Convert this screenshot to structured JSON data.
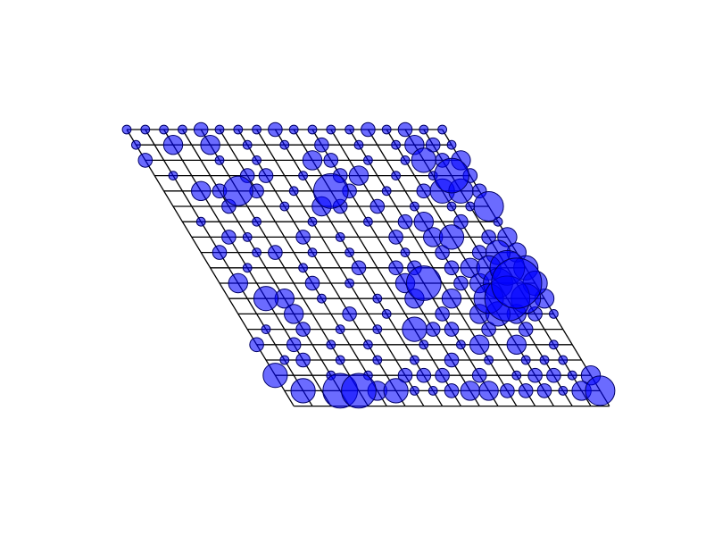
{
  "chart_data": {
    "type": "scatter",
    "grid": true,
    "lattice": {
      "rows": 19,
      "cols": 18
    },
    "colors": {
      "marker_fill": "#0000ff",
      "marker_edge": "#000066",
      "lines": "#000000",
      "background": "#ffffff"
    },
    "size_scale": [
      0,
      10
    ],
    "points": [
      {
        "i": 0,
        "j": 0,
        "s": 1
      },
      {
        "i": 1,
        "j": 0,
        "s": 1
      },
      {
        "i": 2,
        "j": 0,
        "s": 1
      },
      {
        "i": 3,
        "j": 0,
        "s": 1
      },
      {
        "i": 4,
        "j": 0,
        "s": 2
      },
      {
        "i": 5,
        "j": 0,
        "s": 1
      },
      {
        "i": 6,
        "j": 0,
        "s": 1
      },
      {
        "i": 7,
        "j": 0,
        "s": 1
      },
      {
        "i": 8,
        "j": 0,
        "s": 2
      },
      {
        "i": 9,
        "j": 0,
        "s": 1
      },
      {
        "i": 10,
        "j": 0,
        "s": 1
      },
      {
        "i": 11,
        "j": 0,
        "s": 1
      },
      {
        "i": 12,
        "j": 0,
        "s": 1
      },
      {
        "i": 13,
        "j": 0,
        "s": 2
      },
      {
        "i": 14,
        "j": 0,
        "s": 1
      },
      {
        "i": 15,
        "j": 0,
        "s": 2
      },
      {
        "i": 16,
        "j": 0,
        "s": 1
      },
      {
        "i": 17,
        "j": 0,
        "s": 1
      },
      {
        "i": 0,
        "j": 1,
        "s": 1
      },
      {
        "i": 2,
        "j": 1,
        "s": 3
      },
      {
        "i": 4,
        "j": 1,
        "s": 3
      },
      {
        "i": 6,
        "j": 1,
        "s": 1
      },
      {
        "i": 8,
        "j": 1,
        "s": 1
      },
      {
        "i": 10,
        "j": 1,
        "s": 2
      },
      {
        "i": 12,
        "j": 1,
        "s": 1
      },
      {
        "i": 14,
        "j": 1,
        "s": 1
      },
      {
        "i": 15,
        "j": 1,
        "s": 3
      },
      {
        "i": 16,
        "j": 1,
        "s": 2
      },
      {
        "i": 17,
        "j": 1,
        "s": 1
      },
      {
        "i": 0,
        "j": 2,
        "s": 2
      },
      {
        "i": 4,
        "j": 2,
        "s": 1
      },
      {
        "i": 6,
        "j": 2,
        "s": 1
      },
      {
        "i": 9,
        "j": 2,
        "s": 3
      },
      {
        "i": 10,
        "j": 2,
        "s": 2
      },
      {
        "i": 12,
        "j": 2,
        "s": 1
      },
      {
        "i": 14,
        "j": 2,
        "s": 1
      },
      {
        "i": 15,
        "j": 2,
        "s": 4
      },
      {
        "i": 16,
        "j": 2,
        "s": 2
      },
      {
        "i": 17,
        "j": 2,
        "s": 3
      },
      {
        "i": 1,
        "j": 3,
        "s": 1
      },
      {
        "i": 5,
        "j": 3,
        "s": 2
      },
      {
        "i": 6,
        "j": 3,
        "s": 2
      },
      {
        "i": 8,
        "j": 3,
        "s": 1
      },
      {
        "i": 10,
        "j": 3,
        "s": 2
      },
      {
        "i": 11,
        "j": 3,
        "s": 3
      },
      {
        "i": 13,
        "j": 3,
        "s": 1
      },
      {
        "i": 15,
        "j": 3,
        "s": 1
      },
      {
        "i": 16,
        "j": 3,
        "s": 6
      },
      {
        "i": 17,
        "j": 3,
        "s": 2
      },
      {
        "i": 2,
        "j": 4,
        "s": 3
      },
      {
        "i": 3,
        "j": 4,
        "s": 2
      },
      {
        "i": 4,
        "j": 4,
        "s": 5
      },
      {
        "i": 5,
        "j": 4,
        "s": 2
      },
      {
        "i": 7,
        "j": 4,
        "s": 1
      },
      {
        "i": 9,
        "j": 4,
        "s": 6
      },
      {
        "i": 10,
        "j": 4,
        "s": 2
      },
      {
        "i": 12,
        "j": 4,
        "s": 1
      },
      {
        "i": 14,
        "j": 4,
        "s": 2
      },
      {
        "i": 15,
        "j": 4,
        "s": 4
      },
      {
        "i": 16,
        "j": 4,
        "s": 4
      },
      {
        "i": 17,
        "j": 4,
        "s": 2
      },
      {
        "i": 3,
        "j": 5,
        "s": 2
      },
      {
        "i": 6,
        "j": 5,
        "s": 1
      },
      {
        "i": 8,
        "j": 5,
        "s": 3
      },
      {
        "i": 9,
        "j": 5,
        "s": 2
      },
      {
        "i": 11,
        "j": 5,
        "s": 2
      },
      {
        "i": 13,
        "j": 5,
        "s": 1
      },
      {
        "i": 15,
        "j": 5,
        "s": 1
      },
      {
        "i": 16,
        "j": 5,
        "s": 1
      },
      {
        "i": 17,
        "j": 5,
        "s": 5
      },
      {
        "i": 1,
        "j": 6,
        "s": 1
      },
      {
        "i": 4,
        "j": 6,
        "s": 1
      },
      {
        "i": 7,
        "j": 6,
        "s": 1
      },
      {
        "i": 10,
        "j": 6,
        "s": 1
      },
      {
        "i": 12,
        "j": 6,
        "s": 2
      },
      {
        "i": 13,
        "j": 6,
        "s": 3
      },
      {
        "i": 15,
        "j": 6,
        "s": 2
      },
      {
        "i": 17,
        "j": 6,
        "s": 1
      },
      {
        "i": 2,
        "j": 7,
        "s": 2
      },
      {
        "i": 3,
        "j": 7,
        "s": 1
      },
      {
        "i": 6,
        "j": 7,
        "s": 2
      },
      {
        "i": 8,
        "j": 7,
        "s": 1
      },
      {
        "i": 11,
        "j": 7,
        "s": 2
      },
      {
        "i": 13,
        "j": 7,
        "s": 3
      },
      {
        "i": 14,
        "j": 7,
        "s": 4
      },
      {
        "i": 16,
        "j": 7,
        "s": 2
      },
      {
        "i": 17,
        "j": 7,
        "s": 3
      },
      {
        "i": 1,
        "j": 8,
        "s": 2
      },
      {
        "i": 3,
        "j": 8,
        "s": 1
      },
      {
        "i": 4,
        "j": 8,
        "s": 2
      },
      {
        "i": 6,
        "j": 8,
        "s": 1
      },
      {
        "i": 8,
        "j": 8,
        "s": 1
      },
      {
        "i": 11,
        "j": 8,
        "s": 1
      },
      {
        "i": 13,
        "j": 8,
        "s": 2
      },
      {
        "i": 15,
        "j": 8,
        "s": 2
      },
      {
        "i": 16,
        "j": 8,
        "s": 4
      },
      {
        "i": 17,
        "j": 8,
        "s": 3
      },
      {
        "i": 2,
        "j": 9,
        "s": 1
      },
      {
        "i": 5,
        "j": 9,
        "s": 1
      },
      {
        "i": 8,
        "j": 9,
        "s": 2
      },
      {
        "i": 10,
        "j": 9,
        "s": 2
      },
      {
        "i": 11,
        "j": 9,
        "s": 2
      },
      {
        "i": 13,
        "j": 9,
        "s": 2
      },
      {
        "i": 14,
        "j": 9,
        "s": 3
      },
      {
        "i": 15,
        "j": 9,
        "s": 4
      },
      {
        "i": 16,
        "j": 9,
        "s": 6
      },
      {
        "i": 17,
        "j": 9,
        "s": 4
      },
      {
        "i": 1,
        "j": 10,
        "s": 3
      },
      {
        "i": 5,
        "j": 10,
        "s": 2
      },
      {
        "i": 7,
        "j": 10,
        "s": 1
      },
      {
        "i": 10,
        "j": 10,
        "s": 3
      },
      {
        "i": 11,
        "j": 10,
        "s": 6
      },
      {
        "i": 13,
        "j": 10,
        "s": 2
      },
      {
        "i": 14,
        "j": 10,
        "s": 3
      },
      {
        "i": 15,
        "j": 10,
        "s": 5
      },
      {
        "i": 16,
        "j": 10,
        "s": 9
      },
      {
        "i": 17,
        "j": 10,
        "s": 4
      },
      {
        "i": 2,
        "j": 11,
        "s": 4
      },
      {
        "i": 3,
        "j": 11,
        "s": 3
      },
      {
        "i": 5,
        "j": 11,
        "s": 1
      },
      {
        "i": 8,
        "j": 11,
        "s": 1
      },
      {
        "i": 10,
        "j": 11,
        "s": 3
      },
      {
        "i": 12,
        "j": 11,
        "s": 3
      },
      {
        "i": 14,
        "j": 11,
        "s": 5
      },
      {
        "i": 15,
        "j": 11,
        "s": 8
      },
      {
        "i": 16,
        "j": 11,
        "s": 5
      },
      {
        "i": 17,
        "j": 11,
        "s": 3
      },
      {
        "i": 3,
        "j": 12,
        "s": 3
      },
      {
        "i": 6,
        "j": 12,
        "s": 2
      },
      {
        "i": 8,
        "j": 12,
        "s": 1
      },
      {
        "i": 11,
        "j": 12,
        "s": 2
      },
      {
        "i": 13,
        "j": 12,
        "s": 3
      },
      {
        "i": 14,
        "j": 12,
        "s": 4
      },
      {
        "i": 15,
        "j": 12,
        "s": 3
      },
      {
        "i": 16,
        "j": 12,
        "s": 2
      },
      {
        "i": 17,
        "j": 12,
        "s": 1
      },
      {
        "i": 1,
        "j": 13,
        "s": 1
      },
      {
        "i": 3,
        "j": 13,
        "s": 2
      },
      {
        "i": 5,
        "j": 13,
        "s": 1
      },
      {
        "i": 7,
        "j": 13,
        "s": 1
      },
      {
        "i": 9,
        "j": 13,
        "s": 4
      },
      {
        "i": 10,
        "j": 13,
        "s": 2
      },
      {
        "i": 11,
        "j": 13,
        "s": 2
      },
      {
        "i": 13,
        "j": 13,
        "s": 2
      },
      {
        "i": 15,
        "j": 13,
        "s": 2
      },
      {
        "i": 0,
        "j": 14,
        "s": 2
      },
      {
        "i": 2,
        "j": 14,
        "s": 2
      },
      {
        "i": 4,
        "j": 14,
        "s": 1
      },
      {
        "i": 6,
        "j": 14,
        "s": 1
      },
      {
        "i": 9,
        "j": 14,
        "s": 1
      },
      {
        "i": 11,
        "j": 14,
        "s": 1
      },
      {
        "i": 12,
        "j": 14,
        "s": 3
      },
      {
        "i": 14,
        "j": 14,
        "s": 3
      },
      {
        "i": 16,
        "j": 14,
        "s": 1
      },
      {
        "i": 1,
        "j": 15,
        "s": 1
      },
      {
        "i": 2,
        "j": 15,
        "s": 2
      },
      {
        "i": 4,
        "j": 15,
        "s": 1
      },
      {
        "i": 6,
        "j": 15,
        "s": 1
      },
      {
        "i": 8,
        "j": 15,
        "s": 1
      },
      {
        "i": 10,
        "j": 15,
        "s": 2
      },
      {
        "i": 12,
        "j": 15,
        "s": 1
      },
      {
        "i": 14,
        "j": 15,
        "s": 1
      },
      {
        "i": 15,
        "j": 15,
        "s": 1
      },
      {
        "i": 16,
        "j": 15,
        "s": 1
      },
      {
        "i": 0,
        "j": 16,
        "s": 4
      },
      {
        "i": 3,
        "j": 16,
        "s": 1
      },
      {
        "i": 5,
        "j": 16,
        "s": 1
      },
      {
        "i": 7,
        "j": 16,
        "s": 2
      },
      {
        "i": 8,
        "j": 16,
        "s": 2
      },
      {
        "i": 9,
        "j": 16,
        "s": 2
      },
      {
        "i": 11,
        "j": 16,
        "s": 2
      },
      {
        "i": 13,
        "j": 16,
        "s": 1
      },
      {
        "i": 14,
        "j": 16,
        "s": 2
      },
      {
        "i": 15,
        "j": 16,
        "s": 2
      },
      {
        "i": 16,
        "j": 16,
        "s": 1
      },
      {
        "i": 17,
        "j": 16,
        "s": 3
      },
      {
        "i": 1,
        "j": 17,
        "s": 4
      },
      {
        "i": 3,
        "j": 17,
        "s": 6
      },
      {
        "i": 4,
        "j": 17,
        "s": 6
      },
      {
        "i": 5,
        "j": 17,
        "s": 3
      },
      {
        "i": 6,
        "j": 17,
        "s": 4
      },
      {
        "i": 7,
        "j": 17,
        "s": 1
      },
      {
        "i": 8,
        "j": 17,
        "s": 1
      },
      {
        "i": 9,
        "j": 17,
        "s": 2
      },
      {
        "i": 10,
        "j": 17,
        "s": 3
      },
      {
        "i": 11,
        "j": 17,
        "s": 3
      },
      {
        "i": 12,
        "j": 17,
        "s": 2
      },
      {
        "i": 13,
        "j": 17,
        "s": 2
      },
      {
        "i": 14,
        "j": 17,
        "s": 2
      },
      {
        "i": 15,
        "j": 17,
        "s": 1
      },
      {
        "i": 16,
        "j": 17,
        "s": 3
      },
      {
        "i": 17,
        "j": 17,
        "s": 5
      }
    ]
  }
}
